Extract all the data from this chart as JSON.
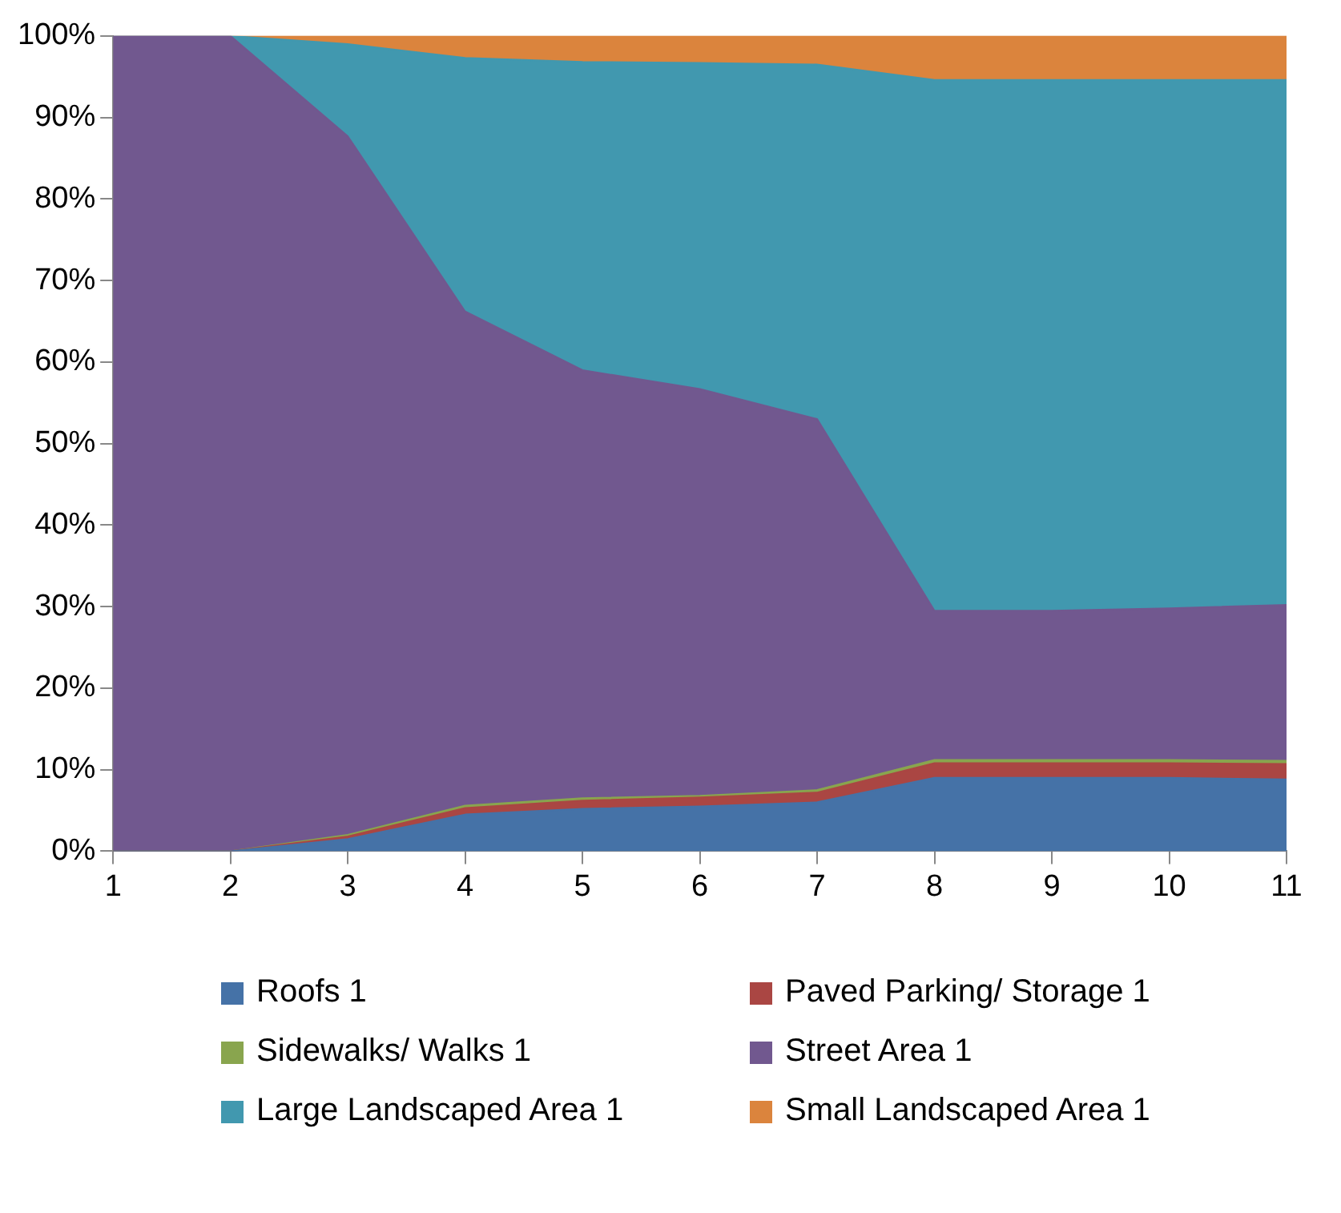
{
  "chart_data": {
    "type": "area",
    "stacked": true,
    "x": [
      1,
      2,
      3,
      4,
      5,
      6,
      7,
      8,
      9,
      10,
      11
    ],
    "xlim": [
      1,
      11
    ],
    "xticks": [
      1,
      2,
      3,
      4,
      5,
      6,
      7,
      8,
      9,
      10,
      11
    ],
    "ylim": [
      0,
      100
    ],
    "yticks": [
      {
        "value": 0,
        "label": "0%"
      },
      {
        "value": 10,
        "label": "10%"
      },
      {
        "value": 20,
        "label": "20%"
      },
      {
        "value": 30,
        "label": "30%"
      },
      {
        "value": 40,
        "label": "40%"
      },
      {
        "value": 50,
        "label": "50%"
      },
      {
        "value": 60,
        "label": "60%"
      },
      {
        "value": 70,
        "label": "70%"
      },
      {
        "value": 80,
        "label": "80%"
      },
      {
        "value": 90,
        "label": "90%"
      },
      {
        "value": 100,
        "label": "100%"
      }
    ],
    "grid": false,
    "legend": "bottom",
    "series": [
      {
        "name": "Roofs 1",
        "color": "#4572a7",
        "values": [
          0,
          0,
          1.5,
          4.5,
          5.2,
          5.5,
          6,
          9,
          9,
          9,
          8.8
        ]
      },
      {
        "name": "Paved Parking/ Storage 1",
        "color": "#aa4643",
        "values": [
          0,
          0,
          0.3,
          0.8,
          1,
          1.1,
          1.2,
          1.8,
          1.8,
          1.8,
          1.9
        ]
      },
      {
        "name": "Sidewalks/ Walks 1",
        "color": "#89a54e",
        "values": [
          0,
          0,
          0.2,
          0.3,
          0.3,
          0.2,
          0.3,
          0.4,
          0.4,
          0.4,
          0.4
        ]
      },
      {
        "name": "Street Area 1",
        "color": "#71588f",
        "values": [
          100,
          100,
          85.7,
          60.6,
          52.5,
          49.9,
          45.5,
          18.3,
          18.3,
          18.6,
          19.1
        ]
      },
      {
        "name": "Large Landscaped Area 1",
        "color": "#4198af",
        "values": [
          0,
          0,
          11.3,
          31.1,
          37.8,
          40,
          43.5,
          65.1,
          65.1,
          64.8,
          64.4
        ]
      },
      {
        "name": "Small Landscaped Area 1",
        "color": "#db843d",
        "values": [
          0,
          0,
          1,
          2.7,
          3.2,
          3.3,
          3.5,
          5.4,
          5.4,
          5.4,
          5.4
        ]
      }
    ]
  }
}
